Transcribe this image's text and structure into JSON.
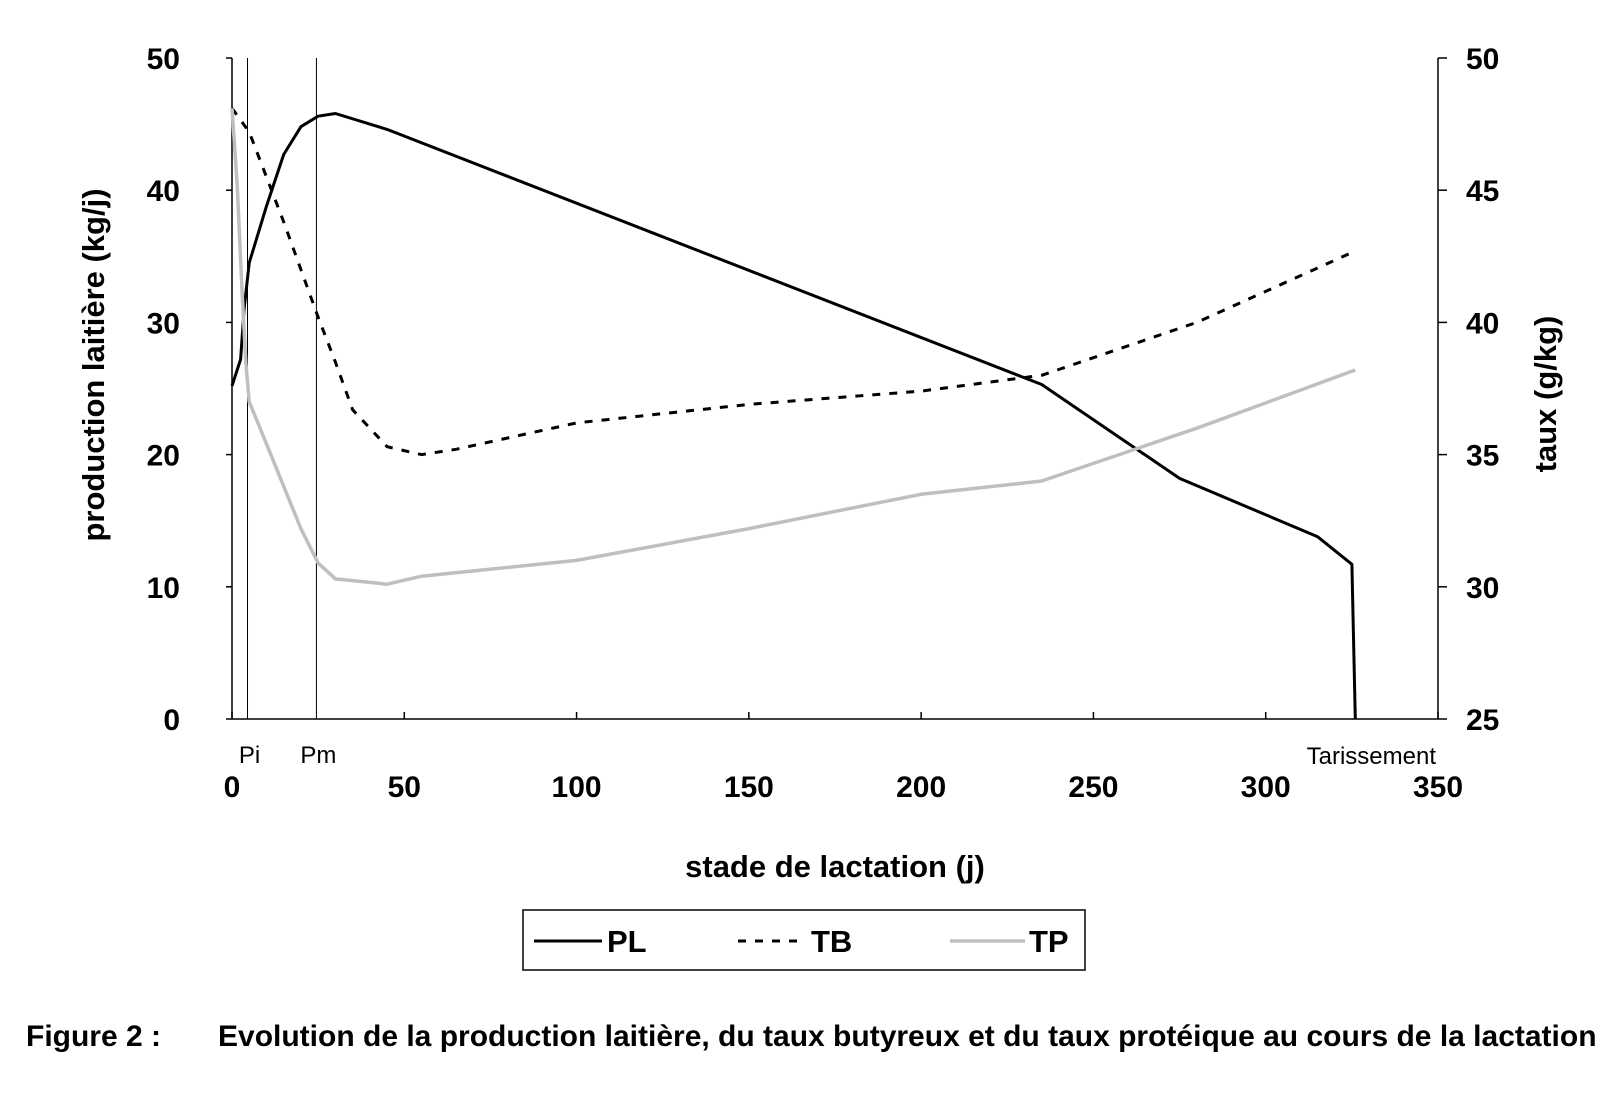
{
  "chart_data": {
    "type": "line",
    "xlabel": "stade de lactation (j)",
    "ylabel": "production laitière (kg/j)",
    "y2label": "taux (g/kg)",
    "xlim": [
      0,
      350
    ],
    "ylim": [
      0,
      50
    ],
    "y2lim": [
      25,
      50
    ],
    "xticks": [
      0,
      50,
      100,
      150,
      200,
      250,
      300,
      350
    ],
    "yticks": [
      0,
      10,
      20,
      30,
      40,
      50
    ],
    "y2ticks": [
      25,
      30,
      35,
      40,
      45,
      50
    ],
    "grid": false,
    "legend_position": "bottom",
    "markers": [
      {
        "label": "Pi",
        "x": 4.5
      },
      {
        "label": "Pm",
        "x": 24.5
      },
      {
        "label": "Tarissement",
        "x": 326
      }
    ],
    "series": [
      {
        "name": "PL",
        "axis": "left",
        "style": "solid",
        "color": "#000000",
        "x": [
          0,
          2.5,
          3.5,
          5,
          10,
          15,
          20,
          25,
          30,
          45,
          235,
          275,
          315,
          325,
          326
        ],
        "y": [
          25.2,
          27.2,
          31,
          34.5,
          38.8,
          42.7,
          44.8,
          45.6,
          45.8,
          44.6,
          25.3,
          18.2,
          13.8,
          11.7,
          0
        ]
      },
      {
        "name": "TB",
        "axis": "right",
        "style": "dashed",
        "color": "#000000",
        "x": [
          0,
          5,
          10,
          15,
          20,
          25,
          30,
          35,
          45,
          55,
          65,
          100,
          150,
          200,
          235,
          280,
          326
        ],
        "y": [
          48.1,
          47.2,
          45.5,
          43.8,
          42,
          40.2,
          38.5,
          36.7,
          35.3,
          35.0,
          35.2,
          36.2,
          36.9,
          37.4,
          38.0,
          40.0,
          42.7
        ]
      },
      {
        "name": "TP",
        "axis": "right",
        "style": "solid",
        "color": "#bfbfbf",
        "x": [
          0,
          1.5,
          3,
          4,
          5,
          10,
          15,
          20,
          25,
          30,
          45,
          55,
          100,
          150,
          200,
          235,
          280,
          326
        ],
        "y": [
          48.1,
          45.2,
          41,
          38.5,
          37,
          35.4,
          33.8,
          32.2,
          30.9,
          30.3,
          30.1,
          30.4,
          31.0,
          32.2,
          33.5,
          34.0,
          36.0,
          38.2
        ]
      }
    ]
  },
  "caption": {
    "label": "Figure 2 :",
    "text": "Evolution de la production laitière, du taux butyreux et du taux protéique au cours de la lactation"
  }
}
